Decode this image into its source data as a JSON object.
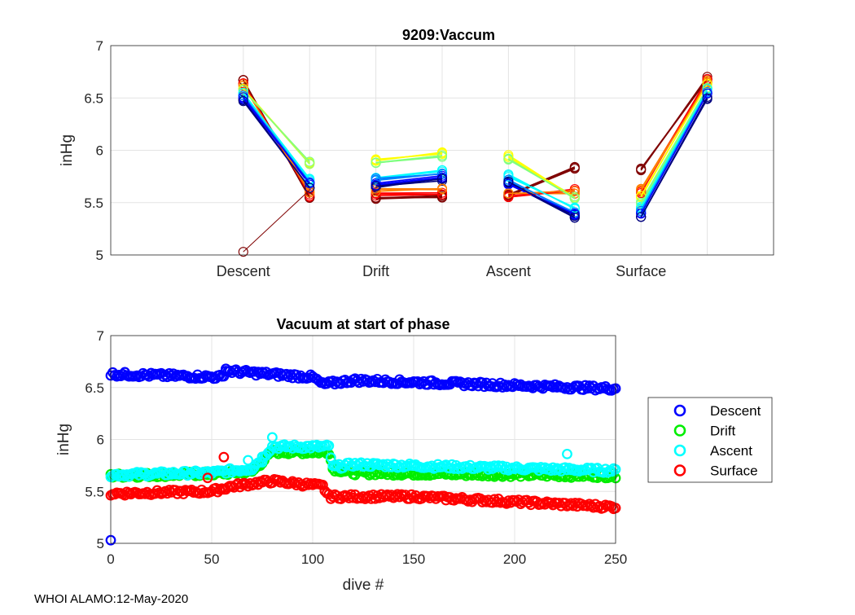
{
  "footer": "WHOI ALAMO:12-May-2020",
  "chart_data": [
    {
      "type": "line",
      "title": "9209:Vaccum",
      "xlabel": "",
      "ylabel": "inHg",
      "ylim": [
        5,
        7
      ],
      "yticks": [
        5,
        5.5,
        6,
        6.5,
        7
      ],
      "xlim": [
        0,
        5
      ],
      "xtick_positions": [
        1,
        2,
        3,
        4
      ],
      "xtick_labels": [
        "Descent",
        "Drift",
        "Ascent",
        "Surface"
      ],
      "grid": true,
      "color_by_dive": [
        "#00007f",
        "#0000ff",
        "#007fff",
        "#00ffff",
        "#7fff7f",
        "#ffff00",
        "#ff7f00",
        "#ff0000",
        "#7f0000"
      ],
      "segment_pairs": [
        [
          1,
          1.5
        ],
        [
          2,
          2.5
        ],
        [
          3,
          3.5
        ],
        [
          4,
          4.5
        ]
      ],
      "series_start": {
        "descent": [
          6.48,
          6.5,
          6.52,
          6.55,
          6.58,
          6.6,
          6.62,
          6.65,
          6.67
        ],
        "drift": [
          5.65,
          5.68,
          5.72,
          5.74,
          5.88,
          5.9,
          5.62,
          5.58,
          5.55
        ],
        "ascent": [
          5.7,
          5.68,
          5.72,
          5.76,
          5.92,
          5.95,
          5.6,
          5.56,
          5.57
        ],
        "surface": [
          5.36,
          5.4,
          5.43,
          5.45,
          5.5,
          5.55,
          5.62,
          5.6,
          5.82
        ]
      },
      "series_end": {
        "descent": [
          5.65,
          5.68,
          5.7,
          5.72,
          5.88,
          5.87,
          5.6,
          5.57,
          5.55
        ],
        "drift": [
          5.72,
          5.75,
          5.78,
          5.8,
          5.95,
          5.97,
          5.62,
          5.58,
          5.56
        ],
        "ascent": [
          5.36,
          5.38,
          5.4,
          5.45,
          5.55,
          5.56,
          5.6,
          5.62,
          5.83
        ],
        "surface": [
          6.5,
          6.53,
          6.55,
          6.58,
          6.6,
          6.63,
          6.66,
          6.68,
          6.69
        ]
      },
      "outlier": {
        "descent_start": 5.03,
        "descent_end": 5.62
      }
    },
    {
      "type": "scatter",
      "title": "Vacuum at start of phase",
      "xlabel": "dive #",
      "ylabel": "inHg",
      "xlim": [
        0,
        250
      ],
      "ylim": [
        5,
        7
      ],
      "xticks": [
        0,
        50,
        100,
        150,
        200,
        250
      ],
      "yticks": [
        5,
        5.5,
        6,
        6.5,
        7
      ],
      "grid": true,
      "legend_position": "right",
      "series": [
        {
          "name": "Descent",
          "color": "#0000ff",
          "segments": [
            [
              0,
              6.63
            ],
            [
              55,
              6.6
            ],
            [
              57,
              6.66
            ],
            [
              100,
              6.6
            ],
            [
              105,
              6.53
            ],
            [
              120,
              6.57
            ],
            [
              250,
              6.49
            ]
          ]
        },
        {
          "name": "Drift",
          "color": "#00ee00",
          "segments": [
            [
              0,
              5.65
            ],
            [
              50,
              5.67
            ],
            [
              70,
              5.69
            ],
            [
              80,
              5.88
            ],
            [
              108,
              5.88
            ],
            [
              110,
              5.72
            ],
            [
              120,
              5.68
            ],
            [
              250,
              5.65
            ]
          ]
        },
        {
          "name": "Ascent",
          "color": "#00ffff",
          "segments": [
            [
              0,
              5.66
            ],
            [
              50,
              5.68
            ],
            [
              70,
              5.72
            ],
            [
              80,
              5.93
            ],
            [
              108,
              5.93
            ],
            [
              110,
              5.73
            ],
            [
              120,
              5.76
            ],
            [
              250,
              5.7
            ]
          ]
        },
        {
          "name": "Surface",
          "color": "#ff0000",
          "segments": [
            [
              0,
              5.48
            ],
            [
              50,
              5.5
            ],
            [
              60,
              5.55
            ],
            [
              80,
              5.6
            ],
            [
              105,
              5.55
            ],
            [
              108,
              5.45
            ],
            [
              150,
              5.45
            ],
            [
              250,
              5.35
            ]
          ]
        }
      ],
      "outliers": [
        {
          "series": "Descent",
          "x": 0,
          "y": 5.03
        },
        {
          "series": "Surface",
          "x": 56,
          "y": 5.83
        },
        {
          "series": "Surface",
          "x": 48,
          "y": 5.63
        },
        {
          "series": "Ascent",
          "x": 80,
          "y": 6.02
        },
        {
          "series": "Ascent",
          "x": 226,
          "y": 5.86
        },
        {
          "series": "Ascent",
          "x": 68,
          "y": 5.8
        },
        {
          "series": "Ascent",
          "x": 75,
          "y": 5.78
        },
        {
          "series": "Descent",
          "x": 57,
          "y": 6.68
        }
      ]
    }
  ]
}
